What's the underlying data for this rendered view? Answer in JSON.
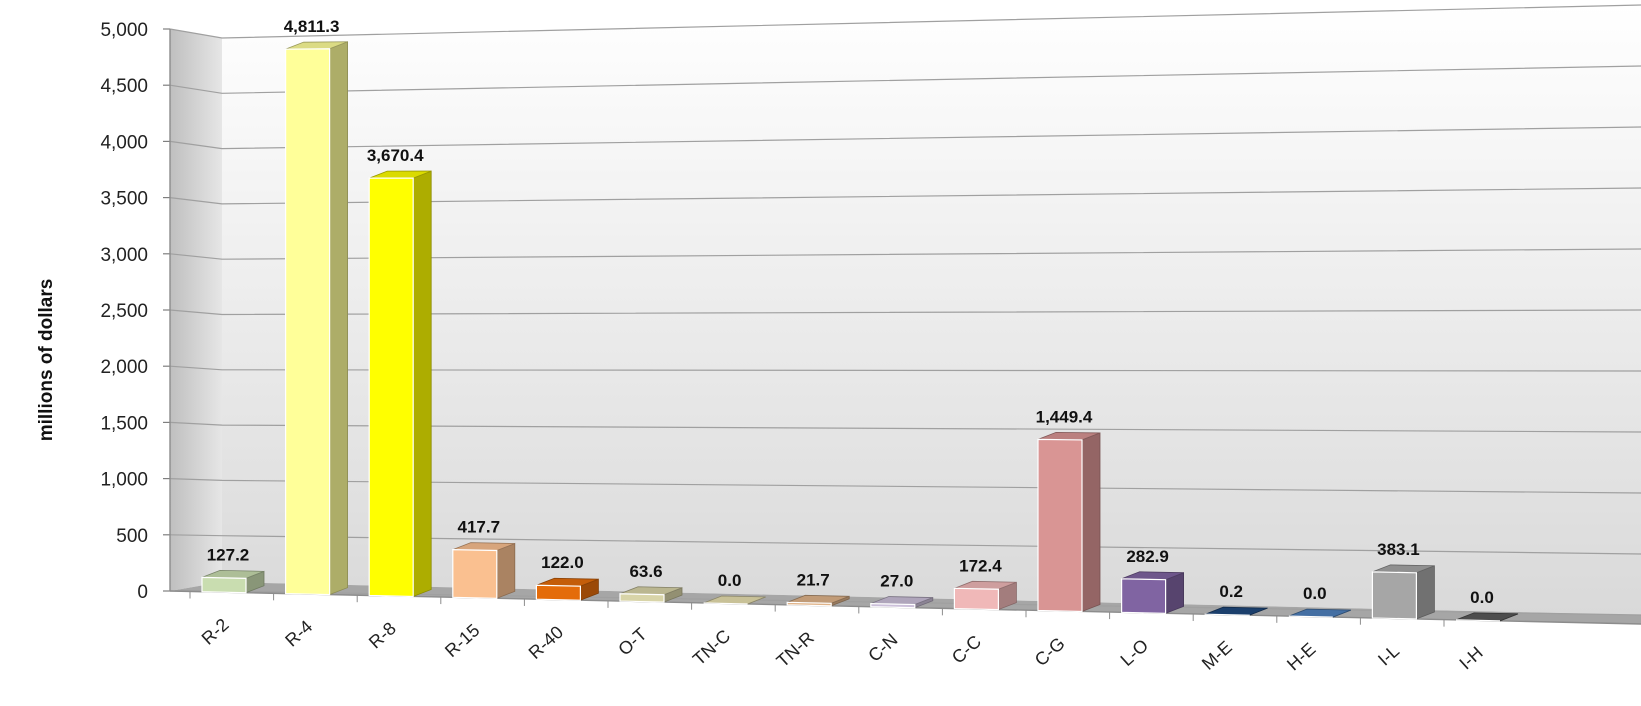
{
  "chart_data": {
    "type": "bar",
    "style": "3d",
    "title": "",
    "xlabel": "",
    "ylabel": "millions of dollars",
    "ylim": [
      0,
      5000
    ],
    "ytick_step": 500,
    "grid": true,
    "legend": "none",
    "categories": [
      "R-2",
      "R-4",
      "R-8",
      "R-15",
      "R-40",
      "O-T",
      "TN-C",
      "TN-R",
      "C-N",
      "C-C",
      "C-G",
      "L-O",
      "M-E",
      "H-E",
      "I-L",
      "I-H"
    ],
    "values": [
      127.2,
      4811.3,
      3670.4,
      417.7,
      122.0,
      63.6,
      0.0,
      21.7,
      27.0,
      172.4,
      1449.4,
      282.9,
      0.2,
      0.0,
      383.1,
      0.0
    ],
    "value_labels": [
      "127.2",
      "4,811.3",
      "3,670.4",
      "417.7",
      "122.0",
      "63.6",
      "0.0",
      "21.7",
      "27.0",
      "172.4",
      "1,449.4",
      "282.9",
      "0.2",
      "0.0",
      "383.1",
      "0.0"
    ],
    "y_tick_labels": [
      "0",
      "500",
      "1,000",
      "1,500",
      "2,000",
      "2,500",
      "3,000",
      "3,500",
      "4,000",
      "4,500",
      "5,000"
    ],
    "colors": [
      "#c9ddb0",
      "#ffff99",
      "#ffff00",
      "#fac090",
      "#e46c0a",
      "#d8d4a8",
      "#e8e0b0",
      "#e0b48a",
      "#ccc0da",
      "#f0b8b8",
      "#d99594",
      "#8064a2",
      "#1f497d",
      "#4f81bd",
      "#a6a6a6",
      "#595959"
    ]
  }
}
